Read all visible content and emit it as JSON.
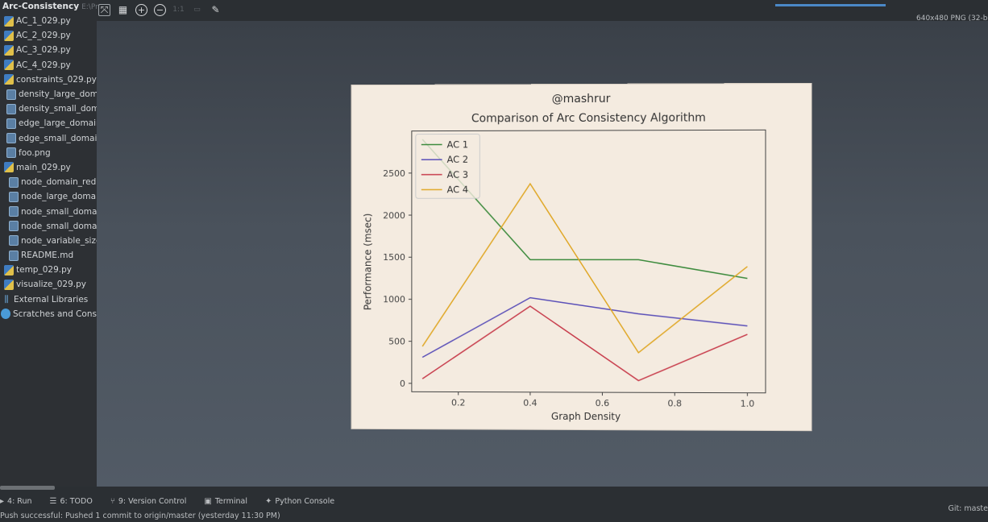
{
  "project": {
    "name": "Arc-Consistency",
    "path": "E:\\Pr",
    "files": [
      {
        "name": "AC_1_029.py",
        "type": "py"
      },
      {
        "name": "AC_2_029.py",
        "type": "py"
      },
      {
        "name": "AC_3_029.py",
        "type": "py"
      },
      {
        "name": "AC_4_029.py",
        "type": "py"
      },
      {
        "name": "constraints_029.py",
        "type": "py"
      },
      {
        "name": "density_large_doma",
        "type": "doc"
      },
      {
        "name": "density_small_doma",
        "type": "doc"
      },
      {
        "name": "edge_large_domair",
        "type": "doc"
      },
      {
        "name": "edge_small_domair",
        "type": "doc"
      },
      {
        "name": "foo.png",
        "type": "doc"
      },
      {
        "name": "main_029.py",
        "type": "py"
      },
      {
        "name": "node_domain_redu",
        "type": "doc"
      },
      {
        "name": "node_large_domair",
        "type": "doc"
      },
      {
        "name": "node_small_domair",
        "type": "doc"
      },
      {
        "name": "node_small_domair",
        "type": "doc"
      },
      {
        "name": "node_variable_sized",
        "type": "doc"
      },
      {
        "name": "README.md",
        "type": "doc"
      },
      {
        "name": "temp_029.py",
        "type": "py"
      },
      {
        "name": "visualize_029.py",
        "type": "py"
      },
      {
        "name": "External Libraries",
        "type": "lib"
      },
      {
        "name": "Scratches and Consoles",
        "type": "scratch"
      }
    ]
  },
  "toolbar": {
    "zoom_in": "+",
    "zoom_out": "−",
    "actual_size": "1:1"
  },
  "image_info": "640x480 PNG (32-b",
  "chart_data": {
    "type": "line",
    "suptitle": "@mashrur",
    "title": "Comparison of Arc Consistency Algorithm",
    "xlabel": "Graph Density",
    "ylabel": "Performance (msec)",
    "x": [
      0.1,
      0.4,
      0.7,
      1.0
    ],
    "xlim": [
      0.07,
      1.05
    ],
    "ylim": [
      -100,
      3000
    ],
    "xticks": [
      0.2,
      0.4,
      0.6,
      0.8,
      1.0
    ],
    "xtick_labels": [
      "0.2",
      "0.4",
      "0.6",
      "0.8",
      "1.0"
    ],
    "yticks": [
      0,
      500,
      1000,
      1500,
      2000,
      2500
    ],
    "ytick_labels": [
      "0",
      "500",
      "1000",
      "1500",
      "2000",
      "2500"
    ],
    "legend_position": "upper-left",
    "series": [
      {
        "name": "AC 1",
        "color": "#3d8b3d",
        "values": [
          2900,
          1470,
          1470,
          1250
        ]
      },
      {
        "name": "AC 2",
        "color": "#5a4fb8",
        "values": [
          310,
          1020,
          830,
          690
        ]
      },
      {
        "name": "AC 3",
        "color": "#c83e4d",
        "values": [
          55,
          920,
          40,
          590
        ]
      },
      {
        "name": "AC 4",
        "color": "#e0a828",
        "values": [
          440,
          2370,
          370,
          1390
        ]
      }
    ]
  },
  "bottom_bar": {
    "run": "4: Run",
    "todo": "6: TODO",
    "vcs": "9: Version Control",
    "terminal": "Terminal",
    "python_console": "Python Console"
  },
  "git_status": "Git: maste",
  "status_message": "Push successful: Pushed 1 commit to origin/master (yesterday 11:30 PM)"
}
